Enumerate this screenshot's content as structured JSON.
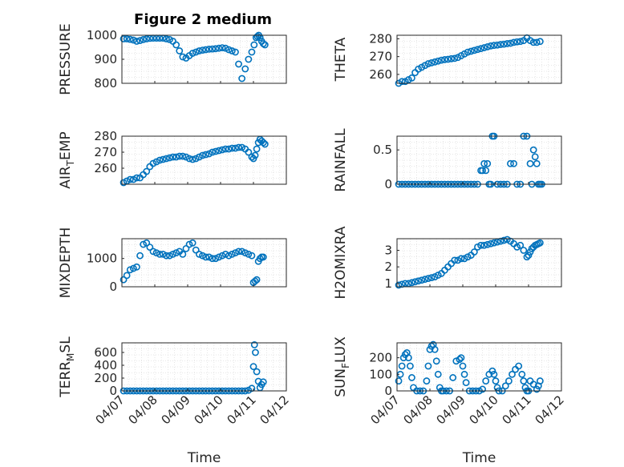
{
  "figure": {
    "title": "Figure 2 medium",
    "marker_color": "#0072BD",
    "marker": "circle-open"
  },
  "chart_data": [
    {
      "type": "scatter",
      "ylabel": "PRESSURE",
      "ylabel_sub": "",
      "ylabel_rest": "",
      "ylim": [
        800,
        1000
      ],
      "yticks": [
        800,
        900,
        1000
      ],
      "xlim": [
        0,
        5
      ],
      "xticks": [],
      "xlabel": "",
      "grid": true,
      "x": [
        0.05,
        0.15,
        0.25,
        0.35,
        0.45,
        0.55,
        0.65,
        0.75,
        0.85,
        0.95,
        1.05,
        1.15,
        1.25,
        1.35,
        1.45,
        1.55,
        1.65,
        1.75,
        1.85,
        1.95,
        2.05,
        2.15,
        2.25,
        2.35,
        2.45,
        2.55,
        2.65,
        2.75,
        2.85,
        2.95,
        3.05,
        3.15,
        3.25,
        3.35,
        3.45,
        3.55,
        3.65,
        3.75,
        3.85,
        3.95,
        4.02,
        4.08,
        4.12,
        4.16,
        4.2,
        4.25,
        4.3,
        4.35
      ],
      "y": [
        985,
        985,
        983,
        980,
        975,
        978,
        982,
        985,
        987,
        988,
        988,
        988,
        988,
        985,
        982,
        975,
        960,
        935,
        910,
        905,
        915,
        925,
        930,
        935,
        938,
        940,
        942,
        943,
        944,
        946,
        948,
        946,
        940,
        935,
        930,
        880,
        820,
        860,
        900,
        930,
        960,
        990,
        995,
        1000,
        990,
        975,
        965,
        960
      ]
    },
    {
      "type": "scatter",
      "ylabel": "THETA",
      "ylabel_sub": "",
      "ylabel_rest": "",
      "ylim": [
        255,
        282
      ],
      "yticks": [
        260,
        270,
        280
      ],
      "xlim": [
        0,
        5
      ],
      "xticks": [],
      "xlabel": "",
      "grid": true,
      "x": [
        0.05,
        0.15,
        0.25,
        0.35,
        0.45,
        0.55,
        0.65,
        0.75,
        0.85,
        0.95,
        1.05,
        1.15,
        1.25,
        1.35,
        1.45,
        1.55,
        1.65,
        1.75,
        1.85,
        1.95,
        2.05,
        2.15,
        2.25,
        2.35,
        2.45,
        2.55,
        2.65,
        2.75,
        2.85,
        2.95,
        3.05,
        3.15,
        3.25,
        3.35,
        3.45,
        3.55,
        3.65,
        3.75,
        3.85,
        3.95,
        4.05,
        4.15,
        4.25,
        4.35
      ],
      "y": [
        255,
        256,
        256,
        257,
        258,
        261,
        263,
        264,
        265,
        266,
        266.5,
        267,
        267.5,
        268,
        268.3,
        268.5,
        268.8,
        269,
        269.5,
        270.5,
        271.5,
        272.5,
        273,
        273.5,
        274,
        274.5,
        275,
        275.5,
        276,
        276.3,
        276.5,
        276.8,
        277,
        277.3,
        277.5,
        278,
        278.3,
        278.5,
        279,
        280.5,
        279,
        278,
        278,
        278.5
      ]
    },
    {
      "type": "scatter",
      "ylabel": "AIR",
      "ylabel_sub": "T",
      "ylabel_rest": "EMP",
      "ylim": [
        250,
        280
      ],
      "yticks": [
        260,
        270,
        280
      ],
      "xlim": [
        0,
        5
      ],
      "xticks": [],
      "xlabel": "",
      "grid": true,
      "x": [
        0.05,
        0.15,
        0.25,
        0.35,
        0.45,
        0.55,
        0.65,
        0.75,
        0.85,
        0.95,
        1.05,
        1.15,
        1.25,
        1.35,
        1.45,
        1.55,
        1.65,
        1.75,
        1.85,
        1.95,
        2.05,
        2.15,
        2.25,
        2.35,
        2.45,
        2.55,
        2.65,
        2.75,
        2.85,
        2.95,
        3.05,
        3.15,
        3.25,
        3.35,
        3.45,
        3.55,
        3.65,
        3.75,
        3.85,
        3.95,
        4.0,
        4.05,
        4.1,
        4.15,
        4.2,
        4.25,
        4.3,
        4.35
      ],
      "y": [
        251,
        252,
        253,
        253,
        254,
        254,
        256,
        258,
        261,
        263,
        264,
        265,
        265.5,
        266,
        266.5,
        267,
        267,
        267.5,
        267.5,
        267,
        266,
        265.5,
        266,
        267,
        268,
        268.5,
        269,
        270,
        270.5,
        271,
        271.5,
        272,
        272,
        272.5,
        272.5,
        273,
        273,
        272,
        270,
        267,
        266,
        268,
        272,
        276,
        278,
        277,
        276,
        275
      ]
    },
    {
      "type": "scatter",
      "ylabel": "RAINFALL",
      "ylabel_sub": "",
      "ylabel_rest": "",
      "ylim": [
        0,
        0.7
      ],
      "yticks": [
        0,
        0.5
      ],
      "xlim": [
        0,
        5
      ],
      "xticks": [],
      "xlabel": "",
      "grid": true,
      "x": [
        0.05,
        0.15,
        0.25,
        0.35,
        0.45,
        0.55,
        0.65,
        0.75,
        0.85,
        0.95,
        1.05,
        1.15,
        1.25,
        1.35,
        1.45,
        1.55,
        1.65,
        1.75,
        1.85,
        1.95,
        2.05,
        2.15,
        2.25,
        2.35,
        2.45,
        2.55,
        2.6,
        2.65,
        2.7,
        2.75,
        2.8,
        2.85,
        2.9,
        2.95,
        3.05,
        3.15,
        3.25,
        3.35,
        3.45,
        3.55,
        3.65,
        3.75,
        3.85,
        3.95,
        4.05,
        4.1,
        4.15,
        4.2,
        4.25,
        4.3,
        4.35,
        4.4
      ],
      "y": [
        0,
        0,
        0,
        0,
        0,
        0,
        0,
        0,
        0,
        0,
        0,
        0,
        0,
        0,
        0,
        0,
        0,
        0,
        0,
        0,
        0,
        0,
        0,
        0,
        0,
        0.2,
        0.2,
        0.3,
        0.2,
        0.3,
        0,
        0,
        0.7,
        0.7,
        0,
        0,
        0,
        0,
        0.3,
        0.3,
        0,
        0,
        0.7,
        0.7,
        0.3,
        0,
        0.5,
        0.4,
        0.3,
        0,
        0,
        0
      ]
    },
    {
      "type": "scatter",
      "ylabel": "MIXDEPTH",
      "ylabel_sub": "",
      "ylabel_rest": "",
      "ylim": [
        0,
        1700
      ],
      "yticks": [
        0,
        1000
      ],
      "xlim": [
        0,
        5
      ],
      "xticks": [],
      "xlabel": "",
      "grid": true,
      "x": [
        0.05,
        0.15,
        0.25,
        0.35,
        0.45,
        0.55,
        0.65,
        0.75,
        0.85,
        0.95,
        1.05,
        1.15,
        1.25,
        1.35,
        1.45,
        1.55,
        1.65,
        1.75,
        1.85,
        1.95,
        2.05,
        2.15,
        2.25,
        2.35,
        2.45,
        2.55,
        2.65,
        2.75,
        2.85,
        2.95,
        3.05,
        3.15,
        3.25,
        3.35,
        3.45,
        3.55,
        3.65,
        3.75,
        3.85,
        3.95,
        4.0,
        4.05,
        4.1,
        4.15,
        4.2,
        4.25,
        4.3
      ],
      "y": [
        250,
        400,
        600,
        650,
        700,
        1100,
        1500,
        1550,
        1400,
        1250,
        1200,
        1150,
        1150,
        1100,
        1100,
        1150,
        1200,
        1250,
        1150,
        1350,
        1500,
        1550,
        1300,
        1150,
        1100,
        1050,
        1050,
        1000,
        1000,
        1050,
        1100,
        1150,
        1100,
        1150,
        1200,
        1250,
        1250,
        1200,
        1150,
        1100,
        150,
        200,
        250,
        900,
        1000,
        1050,
        1050
      ]
    },
    {
      "type": "scatter",
      "ylabel": "H2OMIXRA",
      "ylabel_sub": "",
      "ylabel_rest": "",
      "ylim": [
        0.8,
        3.7
      ],
      "yticks": [
        1,
        2,
        3
      ],
      "xlim": [
        0,
        5
      ],
      "xticks": [],
      "xlabel": "",
      "grid": true,
      "x": [
        0.05,
        0.15,
        0.25,
        0.35,
        0.45,
        0.55,
        0.65,
        0.75,
        0.85,
        0.95,
        1.05,
        1.15,
        1.25,
        1.35,
        1.45,
        1.55,
        1.65,
        1.75,
        1.85,
        1.95,
        2.05,
        2.15,
        2.25,
        2.35,
        2.45,
        2.55,
        2.65,
        2.75,
        2.85,
        2.95,
        3.05,
        3.15,
        3.25,
        3.35,
        3.45,
        3.55,
        3.65,
        3.75,
        3.85,
        3.95,
        4.0,
        4.05,
        4.1,
        4.15,
        4.2,
        4.25,
        4.3,
        4.35
      ],
      "y": [
        0.9,
        0.95,
        1.0,
        1.0,
        1.05,
        1.1,
        1.15,
        1.2,
        1.25,
        1.3,
        1.35,
        1.4,
        1.5,
        1.6,
        1.8,
        2.0,
        2.2,
        2.4,
        2.4,
        2.5,
        2.5,
        2.6,
        2.7,
        2.9,
        3.2,
        3.3,
        3.3,
        3.35,
        3.4,
        3.45,
        3.5,
        3.55,
        3.6,
        3.65,
        3.55,
        3.4,
        3.2,
        3.3,
        3.0,
        2.6,
        2.7,
        2.9,
        3.1,
        3.2,
        3.3,
        3.35,
        3.4,
        3.45
      ]
    },
    {
      "type": "scatter",
      "ylabel": "TERR",
      "ylabel_sub": "M",
      "ylabel_rest": "SL",
      "ylim": [
        0,
        750
      ],
      "yticks": [
        0,
        200,
        400,
        600
      ],
      "xlim": [
        0,
        5
      ],
      "xticks": [
        "04/07",
        "04/08",
        "04/09",
        "04/10",
        "04/11",
        "04/12"
      ],
      "xlabel": "Time",
      "grid": true,
      "x": [
        0.05,
        0.15,
        0.25,
        0.35,
        0.45,
        0.55,
        0.65,
        0.75,
        0.85,
        0.95,
        1.05,
        1.15,
        1.25,
        1.35,
        1.45,
        1.55,
        1.65,
        1.75,
        1.85,
        1.95,
        2.05,
        2.15,
        2.25,
        2.35,
        2.45,
        2.55,
        2.65,
        2.75,
        2.85,
        2.95,
        3.05,
        3.15,
        3.25,
        3.35,
        3.45,
        3.55,
        3.65,
        3.75,
        3.85,
        3.95,
        4.0,
        4.03,
        4.06,
        4.1,
        4.15,
        4.2,
        4.25,
        4.3
      ],
      "y": [
        0,
        0,
        0,
        0,
        0,
        0,
        0,
        0,
        0,
        0,
        0,
        0,
        0,
        0,
        0,
        0,
        0,
        0,
        0,
        0,
        0,
        0,
        0,
        0,
        0,
        0,
        0,
        0,
        0,
        0,
        0,
        0,
        0,
        0,
        0,
        0,
        0,
        0,
        10,
        40,
        380,
        720,
        600,
        300,
        150,
        50,
        100,
        140
      ]
    },
    {
      "type": "scatter",
      "ylabel": "SUN",
      "ylabel_sub": "F",
      "ylabel_rest": "LUX",
      "ylim": [
        0,
        290
      ],
      "yticks": [
        0,
        100,
        200
      ],
      "xlim": [
        0,
        5
      ],
      "xticks": [
        "04/07",
        "04/08",
        "04/09",
        "04/10",
        "04/11",
        "04/12"
      ],
      "xlabel": "Time",
      "grid": true,
      "x": [
        0.05,
        0.1,
        0.15,
        0.2,
        0.25,
        0.3,
        0.35,
        0.4,
        0.45,
        0.5,
        0.6,
        0.7,
        0.8,
        0.9,
        0.95,
        1.0,
        1.05,
        1.1,
        1.15,
        1.2,
        1.25,
        1.3,
        1.35,
        1.4,
        1.5,
        1.6,
        1.7,
        1.8,
        1.9,
        1.95,
        2.0,
        2.05,
        2.1,
        2.2,
        2.3,
        2.4,
        2.5,
        2.6,
        2.7,
        2.8,
        2.9,
        2.95,
        3.0,
        3.05,
        3.1,
        3.2,
        3.3,
        3.4,
        3.5,
        3.6,
        3.7,
        3.8,
        3.85,
        3.9,
        3.95,
        4.0,
        4.05,
        4.15,
        4.25,
        4.3,
        4.35
      ],
      "y": [
        60,
        100,
        150,
        200,
        220,
        230,
        200,
        150,
        80,
        20,
        0,
        0,
        0,
        60,
        150,
        250,
        270,
        280,
        250,
        180,
        100,
        20,
        0,
        0,
        0,
        0,
        80,
        180,
        190,
        200,
        150,
        100,
        50,
        0,
        0,
        0,
        0,
        10,
        60,
        100,
        120,
        100,
        60,
        20,
        0,
        0,
        30,
        60,
        100,
        130,
        150,
        100,
        60,
        20,
        0,
        0,
        60,
        40,
        10,
        30,
        60
      ]
    }
  ]
}
